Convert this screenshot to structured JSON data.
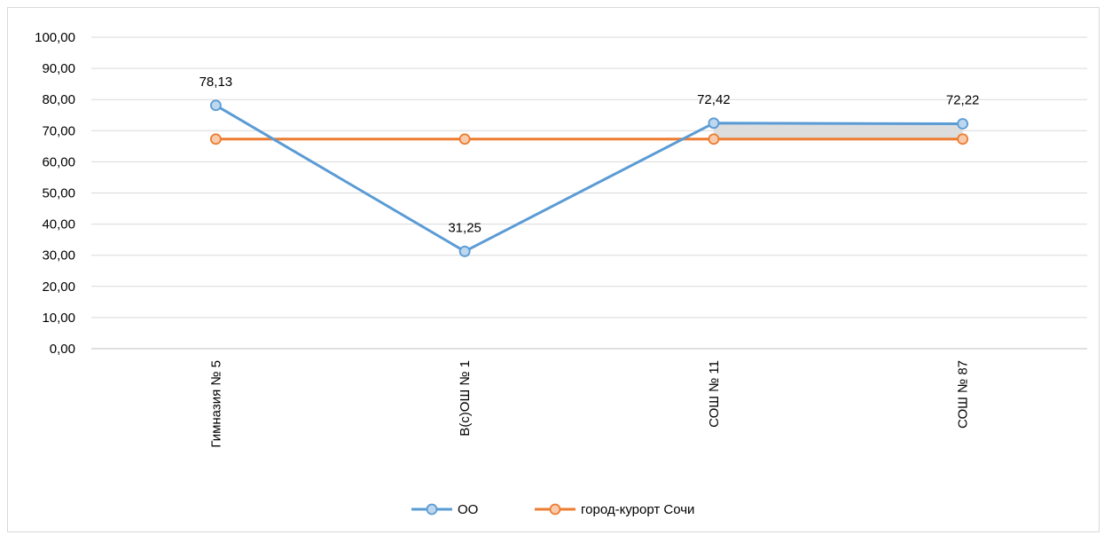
{
  "chart_data": {
    "type": "line",
    "categories": [
      "Гимназия № 5",
      "В(с)ОШ № 1",
      "СОШ № 11",
      "СОШ № 87"
    ],
    "series": [
      {
        "name": "ОО",
        "values": [
          78.13,
          31.25,
          72.42,
          72.22
        ],
        "data_labels": [
          "78,13",
          "31,25",
          "72,42",
          "72,22"
        ],
        "color": "#5b9bd5",
        "marker_fill": "#bdd7ee"
      },
      {
        "name": "город-курорт Сочи",
        "values": [
          67.3,
          67.3,
          67.3,
          67.3
        ],
        "color": "#ed7d31",
        "marker_fill": "#f8cbad"
      }
    ],
    "y_ticks": [
      "0,00",
      "10,00",
      "20,00",
      "30,00",
      "40,00",
      "50,00",
      "60,00",
      "70,00",
      "80,00",
      "90,00",
      "100,00"
    ],
    "ylim": [
      0,
      100
    ],
    "grid": true,
    "legend_position": "bottom",
    "gap_fill_color": "#d9d9d9"
  }
}
